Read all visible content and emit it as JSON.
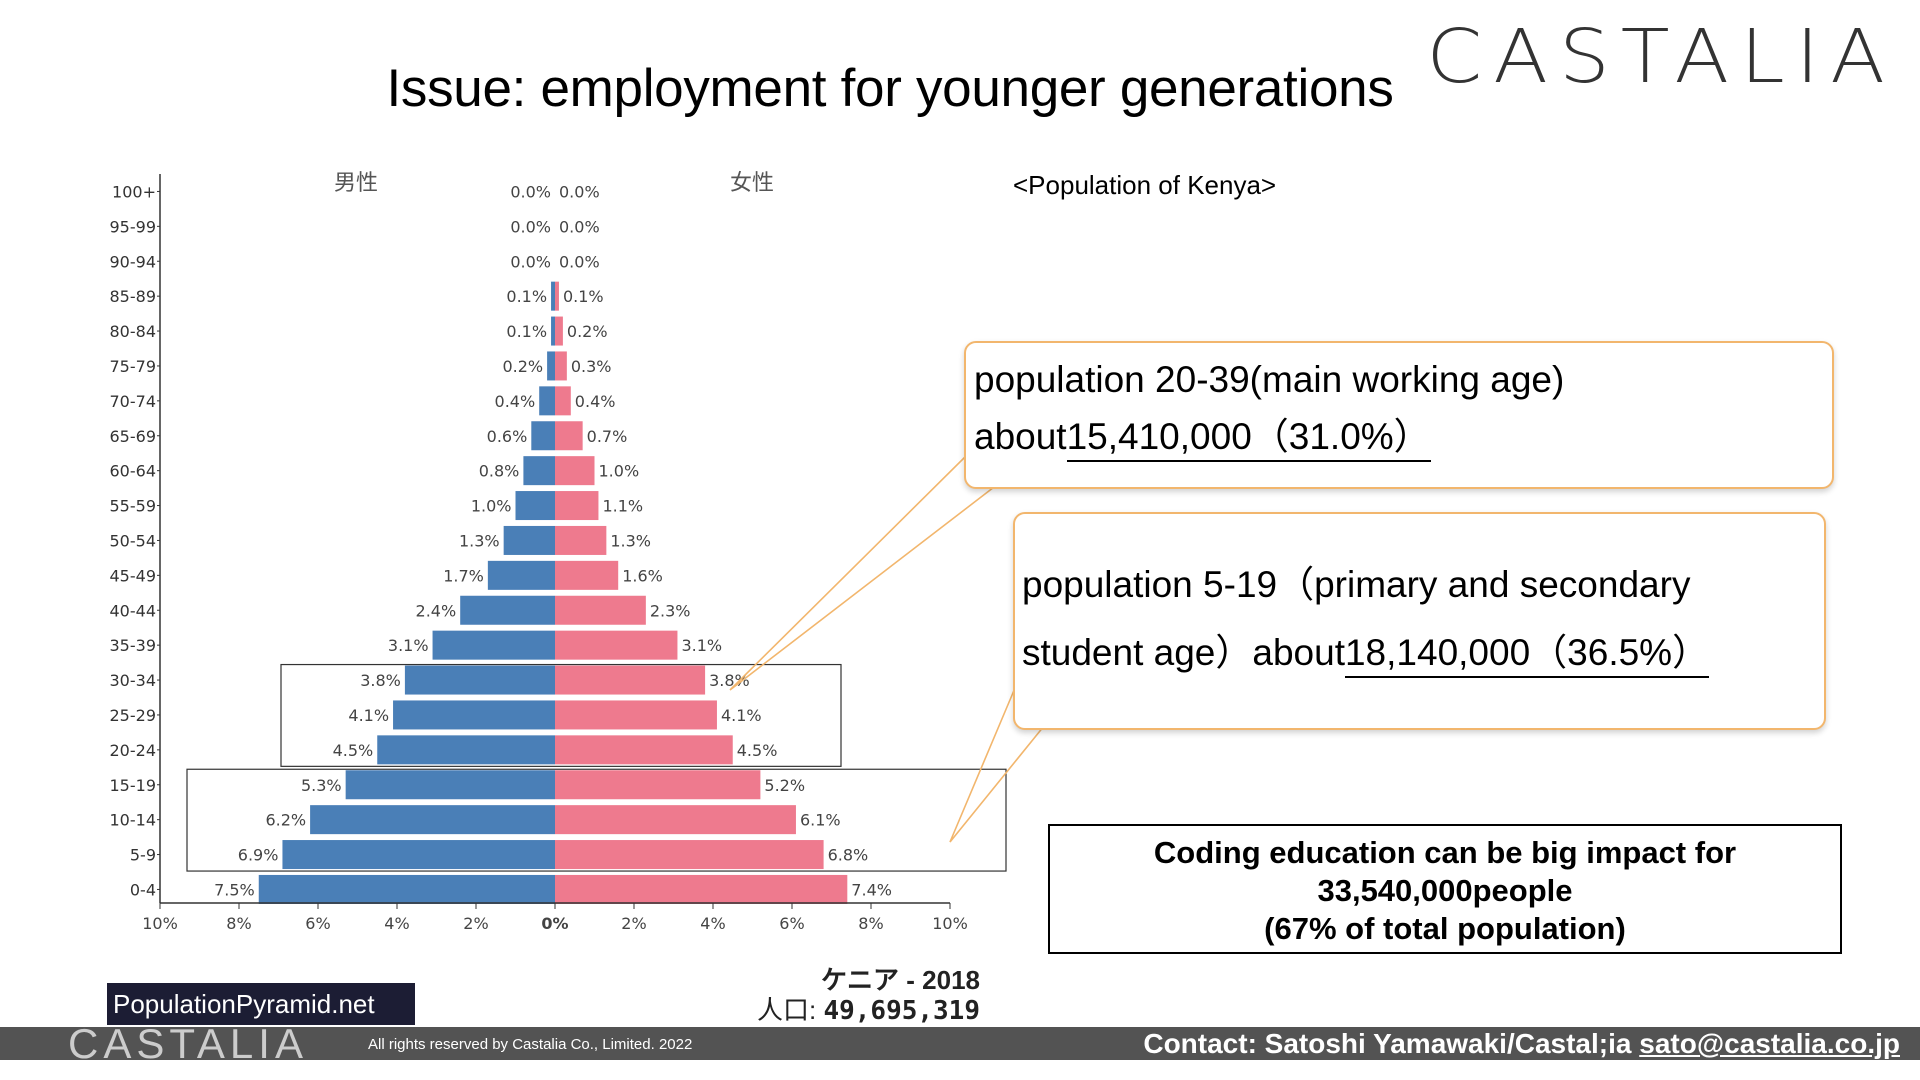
{
  "slide": {
    "title": "Issue: employment for younger generations",
    "logo": "CASTALIA"
  },
  "kenya_label": "<Population of Kenya>",
  "callouts": {
    "working_age": {
      "line1": "population 20-39(main working age)",
      "prefix": "about",
      "value": "15,410,000（31.0%）"
    },
    "student_age": {
      "line1": "population 5-19（primary and secondary",
      "prefix": "student age）about",
      "value": "18,140,000（36.5%）"
    }
  },
  "impact": {
    "line1": "Coding education can be big impact for",
    "line2": "33,540,000people",
    "line3": "(67% of total population)"
  },
  "source_badge": "PopulationPyramid.net",
  "chart_caption": {
    "country": "ケニア - 2018",
    "pop_label": "人口:",
    "pop_value": "49,695,319"
  },
  "footer": {
    "logo": "CASTALIA",
    "rights": "All rights reserved by Castalia Co., Limited. 2022",
    "contact": "Contact: Satoshi Yamawaki/Castal;ia",
    "email": "sato@castalia.co.jp"
  },
  "colors": {
    "male": "#4a7fb7",
    "female": "#ee7a8e",
    "callout_border": "#f2b66d"
  },
  "chart_data": {
    "type": "bar",
    "orientation": "horizontal-pyramid",
    "male_label": "男性",
    "female_label": "女性",
    "categories": [
      "100+",
      "95-99",
      "90-94",
      "85-89",
      "80-84",
      "75-79",
      "70-74",
      "65-69",
      "60-64",
      "55-59",
      "50-54",
      "45-49",
      "40-44",
      "35-39",
      "30-34",
      "25-29",
      "20-24",
      "15-19",
      "10-14",
      "5-9",
      "0-4"
    ],
    "series": [
      {
        "name": "男性",
        "values": [
          0.0,
          0.0,
          0.0,
          0.1,
          0.1,
          0.2,
          0.4,
          0.6,
          0.8,
          1.0,
          1.3,
          1.7,
          2.4,
          3.1,
          3.8,
          4.1,
          4.5,
          5.3,
          6.2,
          6.9,
          7.5
        ],
        "labels": [
          "0.0%",
          "0.0%",
          "0.0%",
          "0.1%",
          "0.1%",
          "0.2%",
          "0.4%",
          "0.6%",
          "0.8%",
          "1.0%",
          "1.3%",
          "1.7%",
          "2.4%",
          "3.1%",
          "3.8%",
          "4.1%",
          "4.5%",
          "5.3%",
          "6.2%",
          "6.9%",
          "7.5%"
        ]
      },
      {
        "name": "女性",
        "values": [
          0.0,
          0.0,
          0.0,
          0.1,
          0.2,
          0.3,
          0.4,
          0.7,
          1.0,
          1.1,
          1.3,
          1.6,
          2.3,
          3.1,
          3.8,
          4.1,
          4.5,
          5.2,
          6.1,
          6.8,
          7.4
        ],
        "labels": [
          "0.0%",
          "0.0%",
          "0.0%",
          "0.1%",
          "0.2%",
          "0.3%",
          "0.4%",
          "0.7%",
          "1.0%",
          "1.1%",
          "1.3%",
          "1.6%",
          "2.3%",
          "3.1%",
          "3.8%",
          "4.1%",
          "4.5%",
          "5.2%",
          "6.1%",
          "6.8%",
          "7.4%"
        ]
      }
    ],
    "x_ticks": [
      "10%",
      "8%",
      "6%",
      "4%",
      "2%",
      "0%",
      "2%",
      "4%",
      "6%",
      "8%",
      "10%"
    ],
    "xlim": [
      -10,
      10
    ],
    "highlight_groups": [
      [
        "30-34",
        "20-24"
      ],
      [
        "15-19",
        "5-9"
      ]
    ]
  }
}
